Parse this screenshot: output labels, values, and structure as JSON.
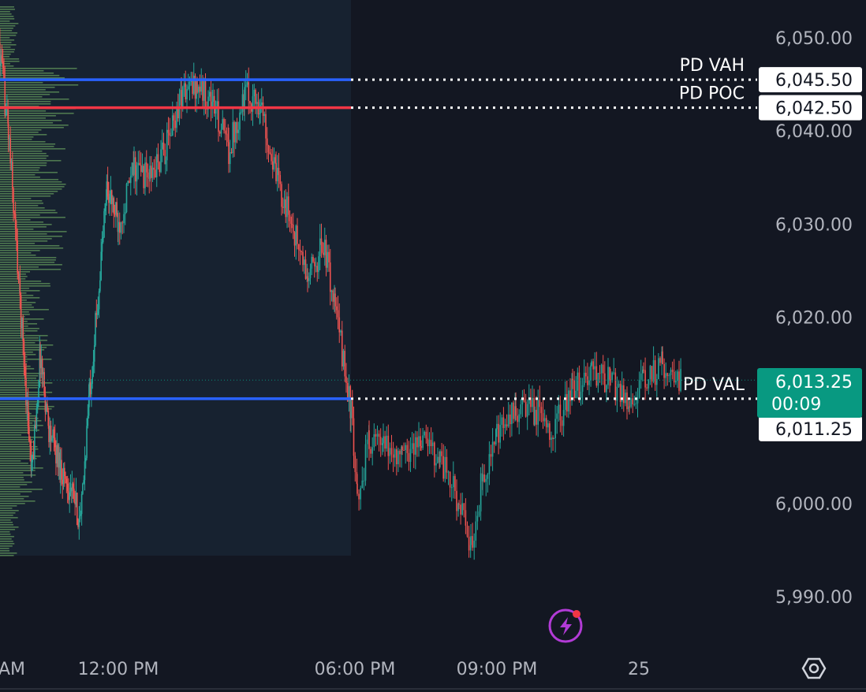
{
  "chart_data": {
    "type": "candlestick",
    "instrument_levels": [
      {
        "name": "PD VAH",
        "price": 6045.5,
        "price_label": "6,045.50",
        "color": "#2962ff"
      },
      {
        "name": "PD POC",
        "price": 6042.5,
        "price_label": "6,042.50",
        "color": "#f23645"
      },
      {
        "name": "PD VAL",
        "price": 6011.25,
        "price_label": "6,011.25",
        "color": "#2962ff"
      }
    ],
    "last_price": {
      "price": 6013.25,
      "label": "6,013.25",
      "countdown": "00:09",
      "color": "#089981"
    },
    "y_axis": {
      "ticks": [
        {
          "value": 6050,
          "label": "6,050.00"
        },
        {
          "value": 6040,
          "label": "6,040.00"
        },
        {
          "value": 6030,
          "label": "6,030.00"
        },
        {
          "value": 6020,
          "label": "6,020.00"
        },
        {
          "value": 6000,
          "label": "6,000.00"
        },
        {
          "value": 5990,
          "label": "5,990.00"
        }
      ],
      "range": [
        5985,
        6054
      ]
    },
    "x_axis": {
      "ticks": [
        {
          "hour": 8,
          "label": "AM"
        },
        {
          "hour": 12,
          "label": "12:00 PM"
        },
        {
          "hour": 18,
          "label": "06:00 PM"
        },
        {
          "hour": 21,
          "label": "09:00 PM"
        },
        {
          "hour": 24,
          "label": "25"
        }
      ],
      "range": [
        7.8,
        27.5
      ]
    },
    "previous_session_end_hour": 17.9,
    "price_path": [
      [
        7.8,
        6051
      ],
      [
        8.2,
        6040
      ],
      [
        8.6,
        6022
      ],
      [
        9.0,
        6003
      ],
      [
        9.3,
        6016
      ],
      [
        9.6,
        6008
      ],
      [
        10.0,
        6004
      ],
      [
        10.4,
        6001
      ],
      [
        10.7,
        5998
      ],
      [
        11.0,
        6012
      ],
      [
        11.3,
        6022
      ],
      [
        11.6,
        6034
      ],
      [
        12.0,
        6030
      ],
      [
        12.4,
        6036
      ],
      [
        12.8,
        6035
      ],
      [
        13.2,
        6038
      ],
      [
        13.6,
        6044
      ],
      [
        14.0,
        6045
      ],
      [
        14.4,
        6043
      ],
      [
        14.8,
        6038
      ],
      [
        15.2,
        6044
      ],
      [
        15.6,
        6043
      ],
      [
        16.0,
        6035
      ],
      [
        16.4,
        6030
      ],
      [
        16.8,
        6024
      ],
      [
        17.2,
        6028
      ],
      [
        17.5,
        6021
      ],
      [
        17.9,
        6010
      ],
      [
        18.05,
        6000
      ],
      [
        18.3,
        6007
      ],
      [
        18.6,
        6006
      ],
      [
        19.0,
        6005
      ],
      [
        19.4,
        6007
      ],
      [
        19.8,
        6005
      ],
      [
        20.2,
        6000
      ],
      [
        20.45,
        5995
      ],
      [
        20.7,
        6003
      ],
      [
        21.0,
        6007
      ],
      [
        21.4,
        6010
      ],
      [
        21.8,
        6010
      ],
      [
        22.2,
        6008
      ],
      [
        22.6,
        6012
      ],
      [
        23.0,
        6014
      ],
      [
        23.4,
        6013
      ],
      [
        23.8,
        6011
      ],
      [
        24.1,
        6013
      ],
      [
        24.5,
        6015
      ],
      [
        24.9,
        6013.25
      ]
    ],
    "volume_profile_color": "#7cc06b",
    "up_color": "#26a69a",
    "down_color": "#ef5350"
  },
  "icons": {
    "alert": "lightning-bolt-icon",
    "settings": "hexagon-settings-icon"
  }
}
